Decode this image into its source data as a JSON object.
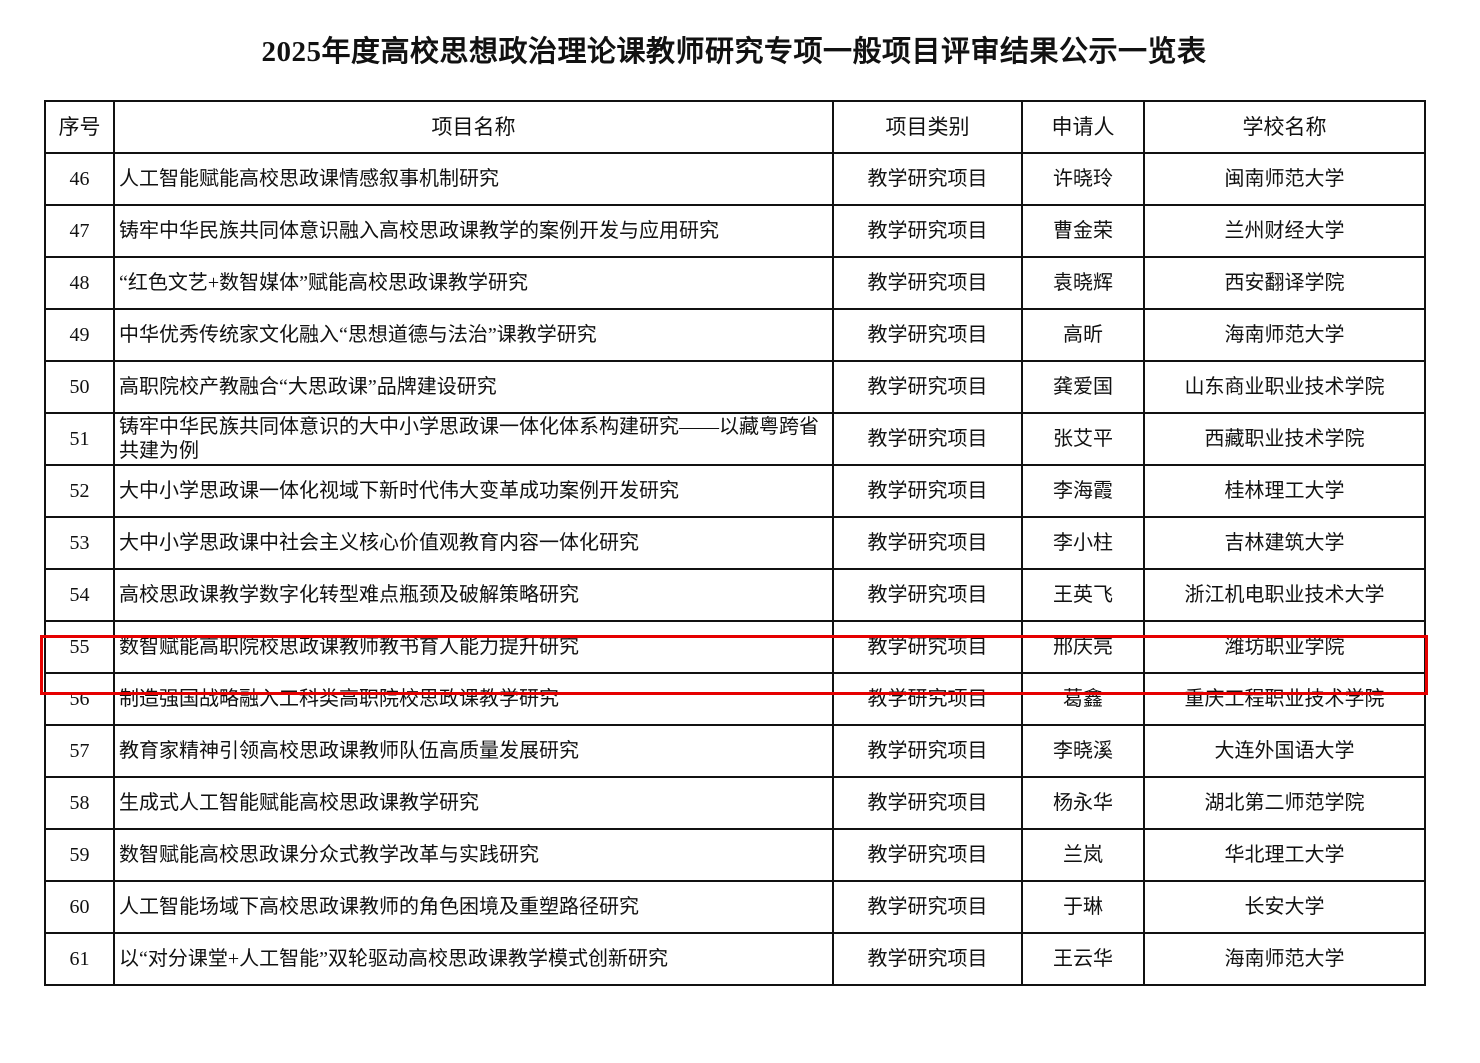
{
  "title": "2025年度高校思想政治理论课教师研究专项一般项目评审结果公示一览表",
  "columns": [
    "序号",
    "项目名称",
    "项目类别",
    "申请人",
    "学校名称"
  ],
  "highlight_color": "#e60000",
  "highlighted_row": "55",
  "rows": [
    {
      "no": "46",
      "name": "人工智能赋能高校思政课情感叙事机制研究",
      "category": "教学研究项目",
      "applicant": "许晓玲",
      "school": "闽南师范大学"
    },
    {
      "no": "47",
      "name": "铸牢中华民族共同体意识融入高校思政课教学的案例开发与应用研究",
      "category": "教学研究项目",
      "applicant": "曹金荣",
      "school": "兰州财经大学"
    },
    {
      "no": "48",
      "name": "“红色文艺+数智媒体”赋能高校思政课教学研究",
      "category": "教学研究项目",
      "applicant": "袁晓辉",
      "school": "西安翻译学院"
    },
    {
      "no": "49",
      "name": "中华优秀传统家文化融入“思想道德与法治”课教学研究",
      "category": "教学研究项目",
      "applicant": "高昕",
      "school": "海南师范大学"
    },
    {
      "no": "50",
      "name": "高职院校产教融合“大思政课”品牌建设研究",
      "category": "教学研究项目",
      "applicant": "龚爱国",
      "school": "山东商业职业技术学院"
    },
    {
      "no": "51",
      "name": "铸牢中华民族共同体意识的大中小学思政课一体化体系构建研究——以藏粤跨省共建为例",
      "category": "教学研究项目",
      "applicant": "张艾平",
      "school": "西藏职业技术学院"
    },
    {
      "no": "52",
      "name": "大中小学思政课一体化视域下新时代伟大变革成功案例开发研究",
      "category": "教学研究项目",
      "applicant": "李海霞",
      "school": "桂林理工大学"
    },
    {
      "no": "53",
      "name": "大中小学思政课中社会主义核心价值观教育内容一体化研究",
      "category": "教学研究项目",
      "applicant": "李小柱",
      "school": "吉林建筑大学"
    },
    {
      "no": "54",
      "name": "高校思政课教学数字化转型难点瓶颈及破解策略研究",
      "category": "教学研究项目",
      "applicant": "王英飞",
      "school": "浙江机电职业技术大学"
    },
    {
      "no": "55",
      "name": "数智赋能高职院校思政课教师教书育人能力提升研究",
      "category": "教学研究项目",
      "applicant": "邢庆亮",
      "school": "潍坊职业学院"
    },
    {
      "no": "56",
      "name": "制造强国战略融入工科类高职院校思政课教学研究",
      "category": "教学研究项目",
      "applicant": "葛鑫",
      "school": "重庆工程职业技术学院"
    },
    {
      "no": "57",
      "name": "教育家精神引领高校思政课教师队伍高质量发展研究",
      "category": "教学研究项目",
      "applicant": "李晓溪",
      "school": "大连外国语大学"
    },
    {
      "no": "58",
      "name": "生成式人工智能赋能高校思政课教学研究",
      "category": "教学研究项目",
      "applicant": "杨永华",
      "school": "湖北第二师范学院"
    },
    {
      "no": "59",
      "name": "数智赋能高校思政课分众式教学改革与实践研究",
      "category": "教学研究项目",
      "applicant": "兰岚",
      "school": "华北理工大学"
    },
    {
      "no": "60",
      "name": "人工智能场域下高校思政课教师的角色困境及重塑路径研究",
      "category": "教学研究项目",
      "applicant": "于琳",
      "school": "长安大学"
    },
    {
      "no": "61",
      "name": "以“对分课堂+人工智能”双轮驱动高校思政课教学模式创新研究",
      "category": "教学研究项目",
      "applicant": "王云华",
      "school": "海南师范大学"
    }
  ]
}
